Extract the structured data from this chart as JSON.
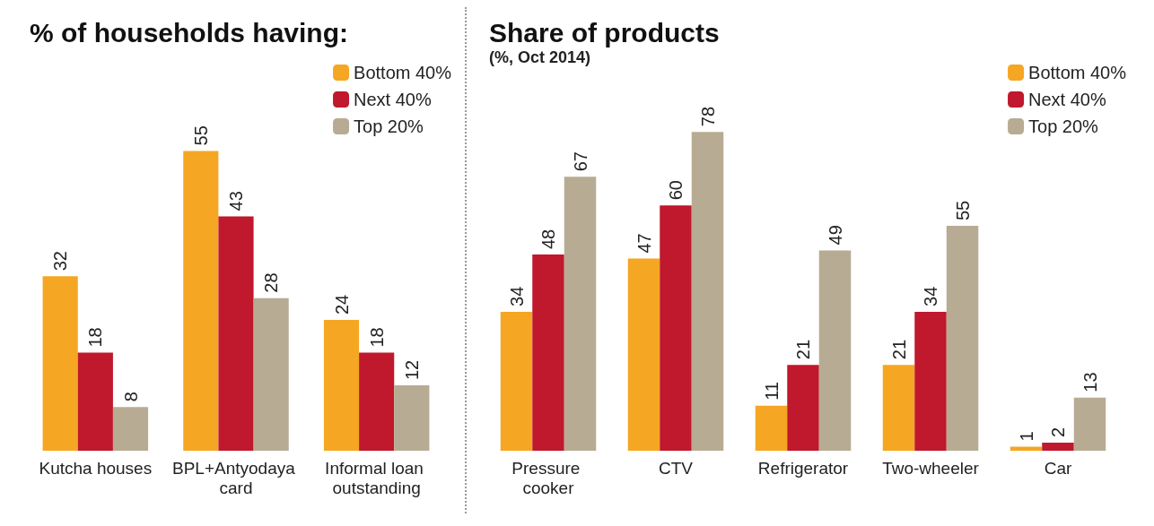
{
  "chart_data": [
    {
      "type": "bar",
      "title": "% of households having:",
      "categories": [
        "Kutcha houses",
        "BPL+Antyodaya card",
        "Informal loan outstanding"
      ],
      "series": [
        {
          "name": "Bottom 40%",
          "color": "#f5a623",
          "values": [
            32,
            55,
            24
          ]
        },
        {
          "name": "Next 40%",
          "color": "#c0182c",
          "values": [
            18,
            43,
            18
          ]
        },
        {
          "name": "Top 20%",
          "color": "#b8ab93",
          "values": [
            8,
            28,
            12
          ]
        }
      ],
      "data_labels": true,
      "legend": "top right"
    },
    {
      "type": "bar",
      "title": "Share of products",
      "subtitle": "(%, Oct 2014)",
      "categories": [
        "Pressure cooker",
        "CTV",
        "Refrigerator",
        "Two-wheeler",
        "Car"
      ],
      "series": [
        {
          "name": "Bottom 40%",
          "color": "#f5a623",
          "values": [
            34,
            47,
            11,
            21,
            1
          ]
        },
        {
          "name": "Next 40%",
          "color": "#c0182c",
          "values": [
            48,
            60,
            21,
            34,
            2
          ]
        },
        {
          "name": "Top 20%",
          "color": "#b8ab93",
          "values": [
            67,
            78,
            49,
            55,
            13
          ]
        }
      ],
      "data_labels": true,
      "legend": "top right"
    }
  ]
}
